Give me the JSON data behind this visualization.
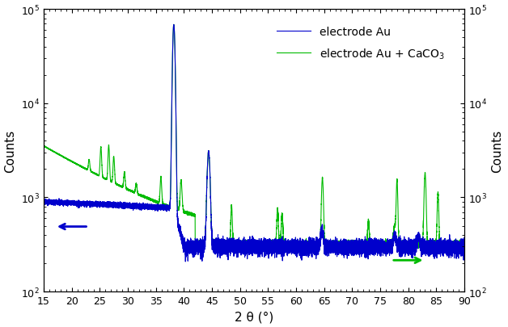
{
  "xlabel": "2 θ (°)",
  "ylabel_left": "Counts",
  "ylabel_right": "Counts",
  "xlim": [
    15,
    90
  ],
  "ylim": [
    100,
    100000
  ],
  "xticklabels": [
    15,
    20,
    25,
    30,
    35,
    40,
    45,
    50,
    55,
    60,
    65,
    70,
    75,
    80,
    85,
    90
  ],
  "legend": [
    "electrode Au",
    "electrode Au + CaCO$_3$"
  ],
  "blue_color": "#0000cc",
  "green_color": "#00bb00",
  "background": "#ffffff"
}
